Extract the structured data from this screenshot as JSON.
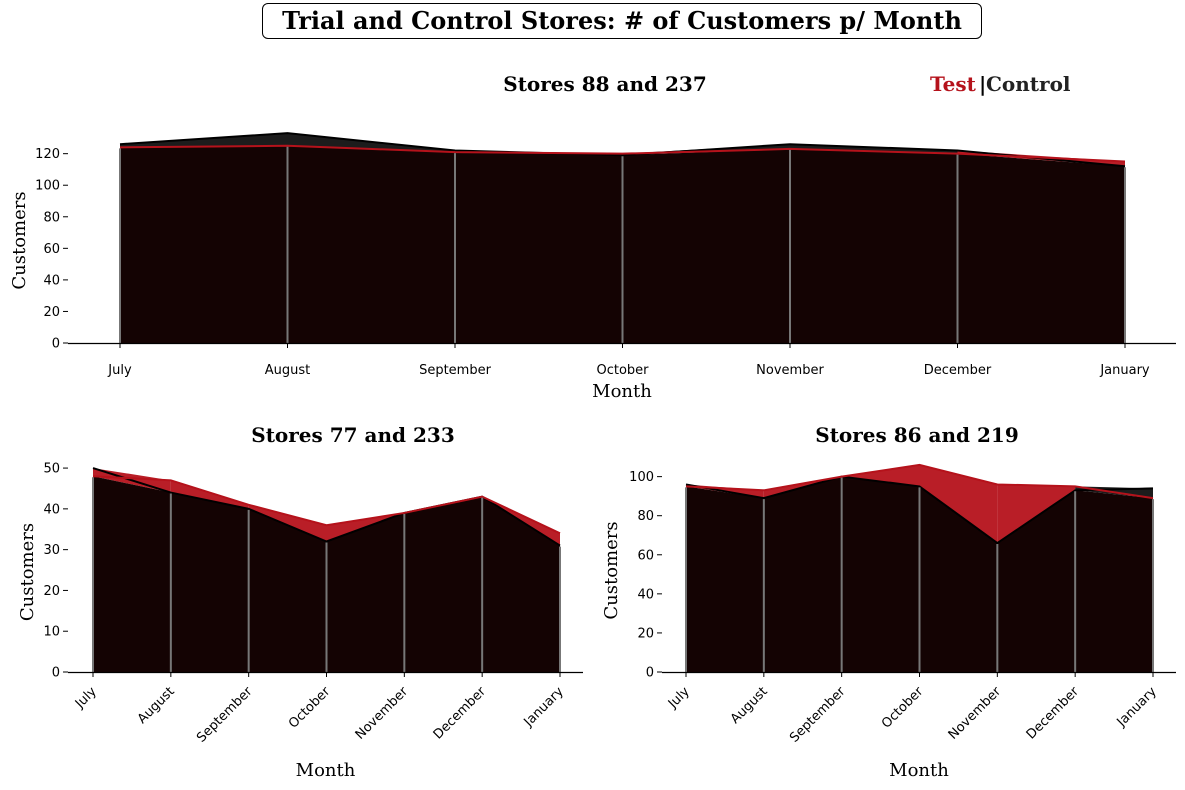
{
  "suptitle": "Trial and Control Stores: # of Customers p/ Month",
  "legend": {
    "test_label": "Test",
    "separator": "|",
    "control_label": "Control"
  },
  "colors": {
    "test": "#b5121b",
    "control": "#000000",
    "fill": "#140303",
    "vline": "#777777"
  },
  "chart_data": [
    {
      "type": "area",
      "title": "Stores 88 and 237",
      "xlabel": "Month",
      "ylabel": "Customers",
      "categories": [
        "July",
        "August",
        "September",
        "October",
        "November",
        "December",
        "January"
      ],
      "ylim": [
        0,
        135
      ],
      "yticks": [
        0,
        20,
        40,
        60,
        80,
        100,
        120
      ],
      "grid": false,
      "series": [
        {
          "name": "Test",
          "values": [
            124,
            125,
            121,
            120,
            123,
            120,
            115
          ]
        },
        {
          "name": "Control",
          "values": [
            126,
            133,
            122,
            119,
            126,
            122,
            112
          ]
        }
      ]
    },
    {
      "type": "area",
      "title": "Stores 77 and 233",
      "xlabel": "Month",
      "ylabel": "Customers",
      "categories": [
        "July",
        "August",
        "September",
        "October",
        "November",
        "December",
        "January"
      ],
      "ylim": [
        0,
        51
      ],
      "yticks": [
        0,
        10,
        20,
        30,
        40,
        50
      ],
      "grid": false,
      "series": [
        {
          "name": "Test",
          "values": [
            48,
            47,
            41,
            36,
            39,
            43,
            34
          ]
        },
        {
          "name": "Control",
          "values": [
            50,
            44,
            40,
            32,
            39,
            43,
            31
          ]
        }
      ]
    },
    {
      "type": "area",
      "title": "Stores 86 and 219",
      "xlabel": "Month",
      "ylabel": "Customers",
      "categories": [
        "July",
        "August",
        "September",
        "October",
        "November",
        "December",
        "January"
      ],
      "ylim": [
        0,
        108
      ],
      "yticks": [
        0,
        20,
        40,
        60,
        80,
        100
      ],
      "grid": false,
      "series": [
        {
          "name": "Test",
          "values": [
            95,
            93,
            100,
            106,
            96,
            95,
            89
          ]
        },
        {
          "name": "Control",
          "values": [
            96,
            89,
            100,
            95,
            66,
            93,
            94
          ]
        }
      ]
    }
  ]
}
